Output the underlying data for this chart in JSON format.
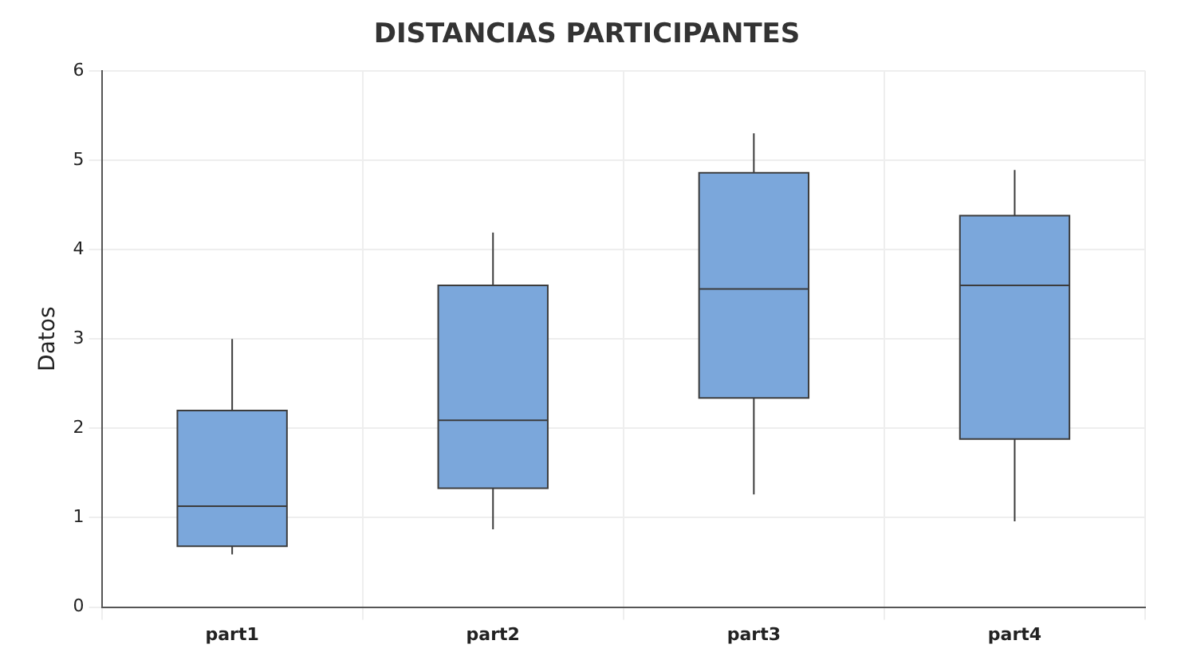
{
  "chart_data": {
    "type": "box",
    "title": "DISTANCIAS PARTICIPANTES",
    "ylabel": "Datos",
    "categories": [
      "part1",
      "part2",
      "part3",
      "part4"
    ],
    "color": "#7ba7db",
    "boxes": [
      {
        "low": 0.59,
        "q1": 0.68,
        "median": 1.13,
        "q3": 2.2,
        "high": 3.0
      },
      {
        "low": 0.87,
        "q1": 1.33,
        "median": 2.09,
        "q3": 3.6,
        "high": 4.19
      },
      {
        "low": 1.26,
        "q1": 2.34,
        "median": 3.56,
        "q3": 4.86,
        "high": 5.3
      },
      {
        "low": 0.96,
        "q1": 1.88,
        "median": 3.6,
        "q3": 4.38,
        "high": 4.89
      }
    ],
    "ylim": [
      0,
      6
    ],
    "yticks": [
      0,
      1,
      2,
      3,
      4,
      5,
      6
    ],
    "grid": true,
    "legend": false
  }
}
